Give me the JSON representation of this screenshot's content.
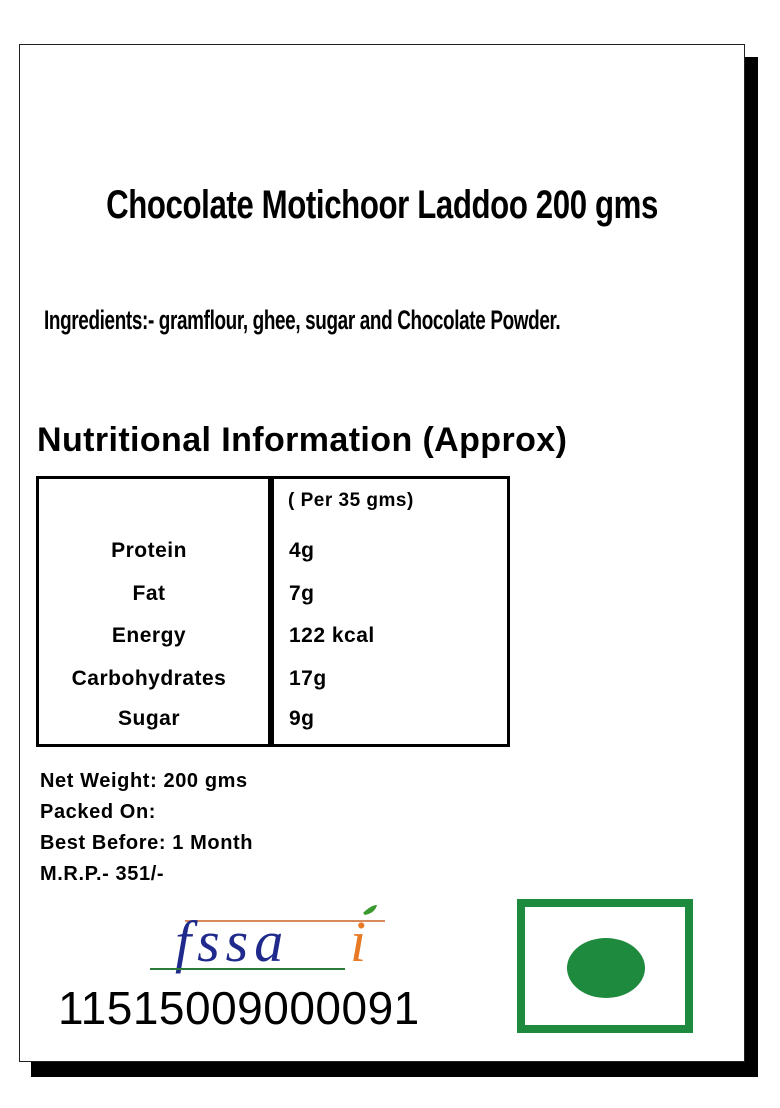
{
  "label": {
    "title": "Chocolate Motichoor Laddoo 200 gms",
    "ingredients": "Ingredients:- gramflour, ghee, sugar and Chocolate Powder.",
    "nutrition": {
      "heading": "Nutritional Information (Approx)",
      "serving": "( Per 35 gms)",
      "rows": [
        {
          "nutrient": "Protein",
          "value": "4g"
        },
        {
          "nutrient": "Fat",
          "value": "7g"
        },
        {
          "nutrient": "Energy",
          "value": "122 kcal"
        },
        {
          "nutrient": "Carbohydrates",
          "value": "17g"
        },
        {
          "nutrient": "Sugar",
          "value": "9g"
        }
      ]
    },
    "details": {
      "net_weight": "Net Weight: 200 gms",
      "packed_on": "Packed On:",
      "best_before": "Best Before: 1 Month",
      "mrp": "M.R.P.- 351/-"
    },
    "fssai": {
      "logo_text": "fssai",
      "license_number": "11515009000091"
    },
    "veg_mark": {
      "icon": "veg-symbol-icon",
      "color": "#1e8a3e"
    }
  }
}
